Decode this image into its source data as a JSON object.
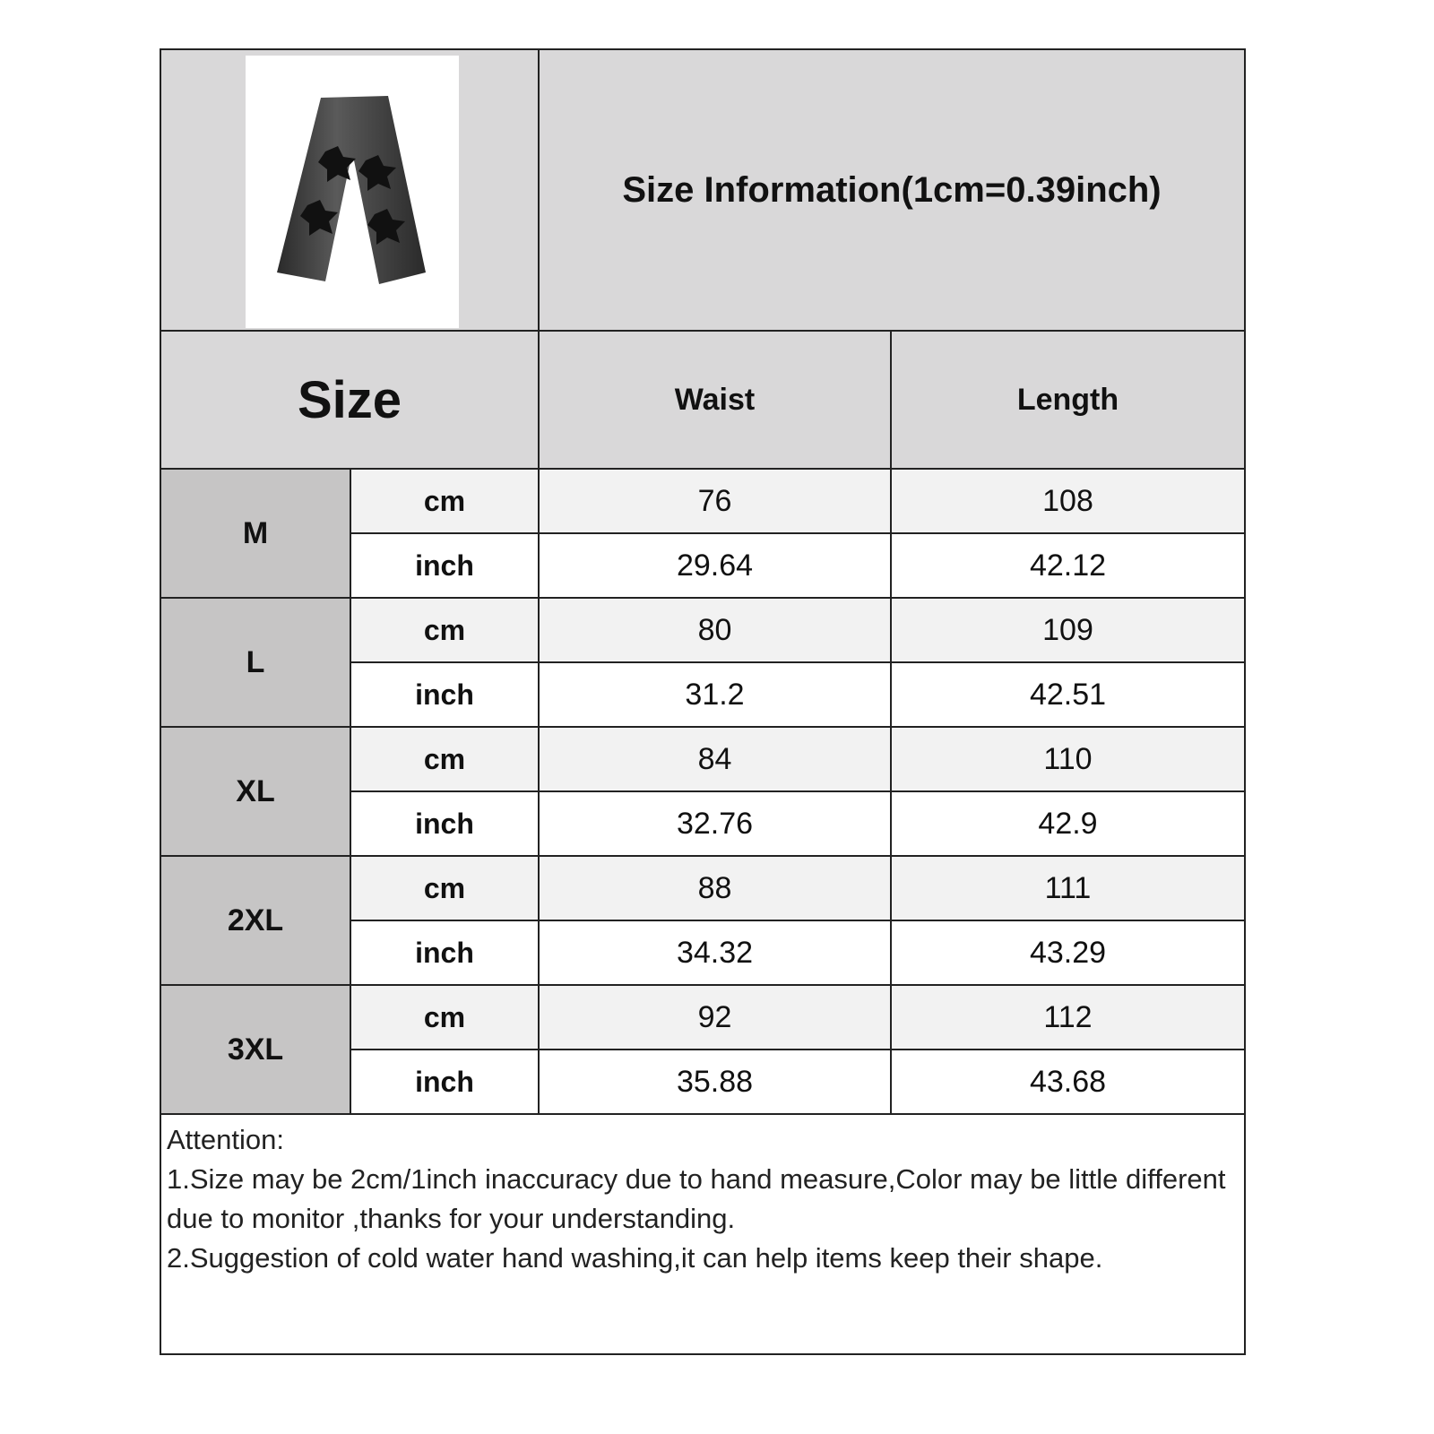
{
  "title": "Size Information(1cm=0.39inch)",
  "headers": {
    "size": "Size",
    "waist": "Waist",
    "length": "Length"
  },
  "product_image": "black wide-leg jeans with star patches",
  "colors": {
    "header_bg": "#d9d8d9",
    "size_label_bg": "#c6c5c5",
    "cm_row_bg": "#f2f2f2",
    "inch_row_bg": "#ffffff",
    "border": "#222222"
  },
  "rows": [
    {
      "size": "M",
      "cm": {
        "unit": "cm",
        "waist": "76",
        "length": "108"
      },
      "inch": {
        "unit": "inch",
        "waist": "29.64",
        "length": "42.12"
      }
    },
    {
      "size": "L",
      "cm": {
        "unit": "cm",
        "waist": "80",
        "length": "109"
      },
      "inch": {
        "unit": "inch",
        "waist": "31.2",
        "length": "42.51"
      }
    },
    {
      "size": "XL",
      "cm": {
        "unit": "cm",
        "waist": "84",
        "length": "110"
      },
      "inch": {
        "unit": "inch",
        "waist": "32.76",
        "length": "42.9"
      }
    },
    {
      "size": "2XL",
      "cm": {
        "unit": "cm",
        "waist": "88",
        "length": "111"
      },
      "inch": {
        "unit": "inch",
        "waist": "34.32",
        "length": "43.29"
      }
    },
    {
      "size": "3XL",
      "cm": {
        "unit": "cm",
        "waist": "92",
        "length": "112"
      },
      "inch": {
        "unit": "inch",
        "waist": "35.88",
        "length": "43.68"
      }
    }
  ],
  "attention": {
    "heading": "Attention:",
    "line1": "1.Size may be 2cm/1inch inaccuracy due to hand measure,Color may be little different due to monitor ,thanks for your understanding.",
    "line2": "2.Suggestion of cold water hand washing,it can help items keep their shape."
  }
}
